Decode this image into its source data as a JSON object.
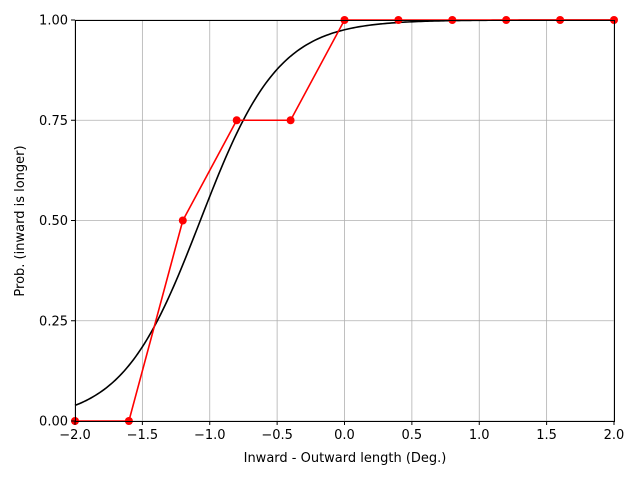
{
  "chart_data": {
    "type": "line",
    "xlabel": "Inward - Outward length (Deg.)",
    "ylabel": "Prob. (inward is longer)",
    "xlim": [
      -2.0,
      2.0
    ],
    "ylim": [
      0.0,
      1.0
    ],
    "grid": true,
    "x_ticks": [
      -2.0,
      -1.5,
      -1.0,
      -0.5,
      0.0,
      0.5,
      1.0,
      1.5,
      2.0
    ],
    "x_tick_labels": [
      "−2.0",
      "−1.5",
      "−1.0",
      "−0.5",
      "0.0",
      "0.5",
      "1.0",
      "1.5",
      "2.0"
    ],
    "y_ticks": [
      0.0,
      0.25,
      0.5,
      0.75,
      1.0
    ],
    "y_tick_labels": [
      "0.00",
      "0.25",
      "0.50",
      "0.75",
      "1.00"
    ],
    "series": [
      {
        "kind": "observed",
        "color": "#ff0000",
        "marker": "circle",
        "x": [
          -2.0,
          -1.6,
          -1.2,
          -0.8,
          -0.4,
          0.0,
          0.4,
          0.8,
          1.2,
          1.6,
          2.0
        ],
        "y": [
          0.0,
          0.0,
          0.5,
          0.75,
          0.75,
          1.0,
          1.0,
          1.0,
          1.0,
          1.0,
          1.0
        ]
      },
      {
        "kind": "fitted",
        "color": "#000000",
        "marker": "none",
        "function": "logistic",
        "mu": -1.07,
        "s": 0.29
      }
    ]
  }
}
